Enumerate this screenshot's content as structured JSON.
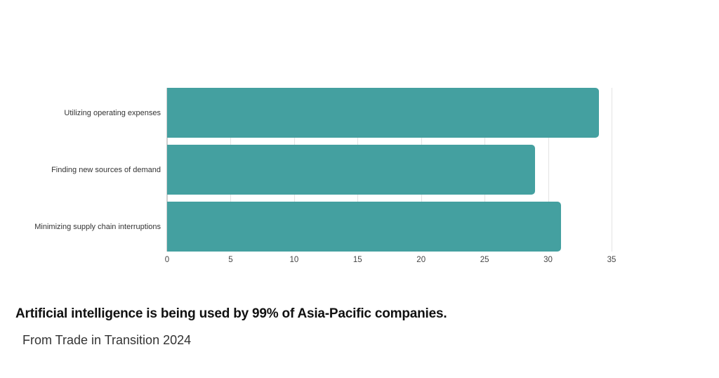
{
  "chart_data": {
    "type": "bar",
    "orientation": "horizontal",
    "title": "Artificial intelligence is being used by 99% of Asia-Pacific companies.",
    "subtitle": "From Trade in Transition 2024",
    "categories": [
      "Utilizing operating expenses",
      "Finding new sources of demand",
      "Minimizing supply chain interruptions"
    ],
    "values": [
      34,
      29,
      31
    ],
    "xlabel": "",
    "ylabel": "",
    "xlim": [
      0,
      35
    ],
    "x_ticks": [
      "0",
      "5",
      "10",
      "15",
      "20",
      "25",
      "30",
      "35"
    ],
    "grid": true,
    "legend": null,
    "bar_color": "#44a0a0"
  },
  "footer": {
    "headline": "Artificial intelligence is being used by 99% of Asia-Pacific companies.",
    "source": "From Trade in Transition 2024"
  }
}
